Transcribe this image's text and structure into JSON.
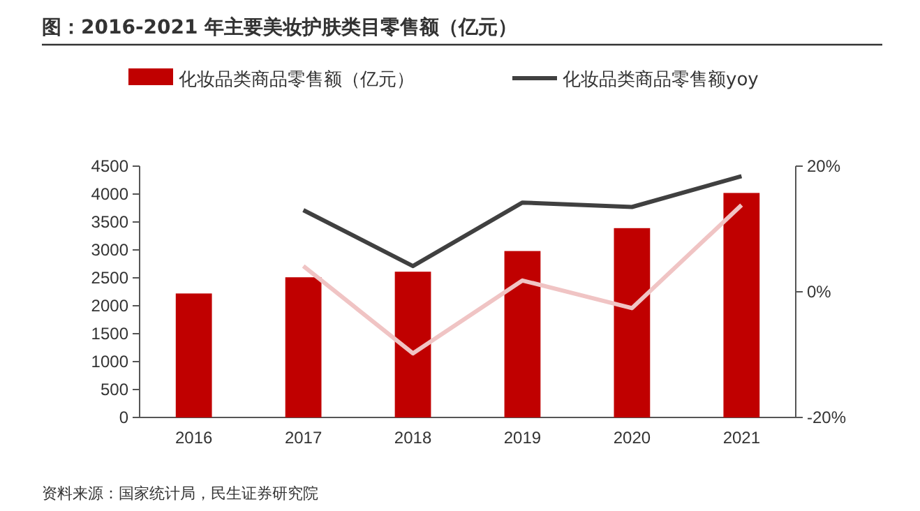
{
  "chart_data": {
    "type": "bar",
    "title": "图：2016-2021 年主要美妆护肤类目零售额（亿元）",
    "categories": [
      "2016",
      "2017",
      "2018",
      "2019",
      "2020",
      "2021"
    ],
    "series": [
      {
        "name": "化妆品类商品零售额（亿元）",
        "color": "#c00000",
        "values": [
          2220,
          2510,
          2610,
          2980,
          3390,
          4020
        ]
      },
      {
        "name": "化妆品类商品零售额yoy",
        "type": "line",
        "axis": "y2",
        "color": "#404040",
        "values": [
          null,
          13.0,
          4.1,
          14.2,
          13.5,
          18.4
        ]
      },
      {
        "type": "line",
        "axis": "y2",
        "color": "#f0c4c4",
        "values": [
          null,
          4.1,
          -9.8,
          1.8,
          -2.6,
          13.8
        ]
      }
    ],
    "ylim": [
      0,
      4500
    ],
    "yticks": [
      0,
      500,
      1000,
      1500,
      2000,
      2500,
      3000,
      3500,
      4000,
      4500
    ],
    "y2lim": [
      -20,
      20
    ],
    "y2ticks": [
      {
        "value": -20,
        "label": "-20%"
      },
      {
        "value": 0,
        "label": "0%"
      },
      {
        "value": 20,
        "label": "20%"
      }
    ],
    "legend": "top",
    "grid": false,
    "marker": "none",
    "annotations": [
      "资料来源：国家统计局，民生证券研究院"
    ]
  }
}
